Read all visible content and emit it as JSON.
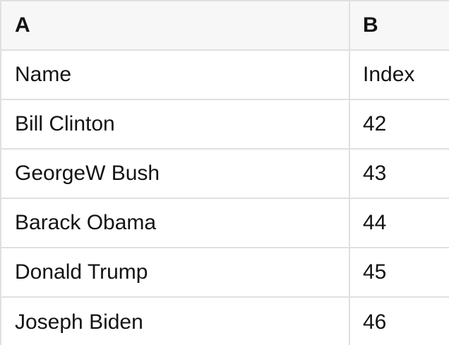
{
  "table": {
    "header": {
      "col_a": "A",
      "col_b": "B"
    },
    "rows": [
      {
        "a": "Name",
        "b": "Index"
      },
      {
        "a": "Bill Clinton",
        "b": "42"
      },
      {
        "a": "GeorgeW Bush",
        "b": "43"
      },
      {
        "a": "Barack Obama",
        "b": "44"
      },
      {
        "a": "Donald Trump",
        "b": "45"
      },
      {
        "a": "Joseph Biden",
        "b": "46"
      }
    ]
  },
  "colors": {
    "header_bg": "#f7f7f7",
    "border": "#e0e0e0",
    "text": "#131313",
    "row_bg": "#ffffff"
  }
}
